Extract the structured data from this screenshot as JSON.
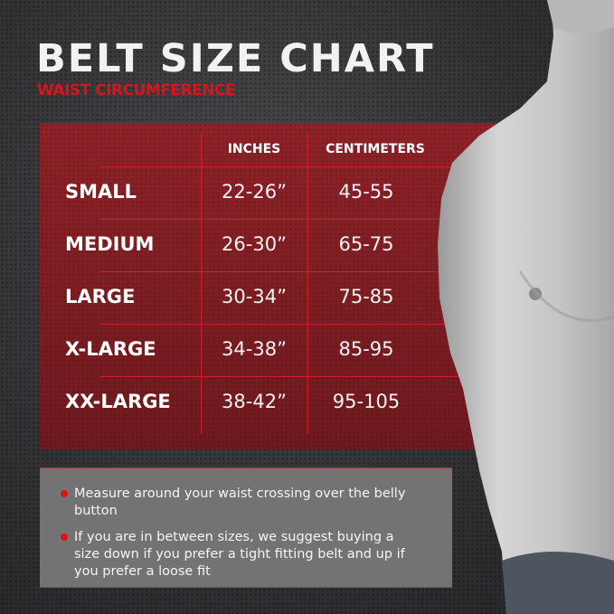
{
  "title": "BELT SIZE CHART",
  "subtitle": "WAIST CIRCUMFERENCE",
  "table": {
    "headers": [
      "INCHES",
      "CENTIMETERS"
    ],
    "rows": [
      {
        "size": "SMALL",
        "inches": "22-26”",
        "cm": "45-55"
      },
      {
        "size": "MEDIUM",
        "inches": "26-30”",
        "cm": "65-75"
      },
      {
        "size": "LARGE",
        "inches": "30-34”",
        "cm": "75-85"
      },
      {
        "size": "X-LARGE",
        "inches": "34-38”",
        "cm": "85-95"
      },
      {
        "size": "XX-LARGE",
        "inches": "38-42”",
        "cm": "95-105"
      }
    ]
  },
  "notes": [
    "Measure around your waist crossing over the belly button",
    "If you are in between sizes, we suggest buying a size down if you prefer a tight fitting belt and up if you prefer a loose fit"
  ],
  "colors": {
    "accent": "#d8141c",
    "panel": "#7e1c21",
    "notes_bg": "#737373"
  }
}
